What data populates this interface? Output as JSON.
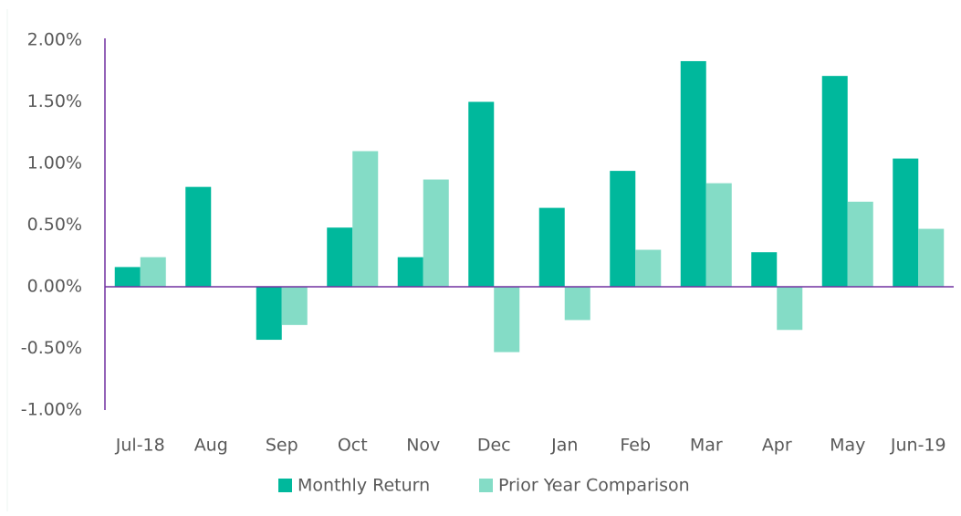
{
  "chart_data": {
    "type": "bar",
    "categories": [
      "Jul-18",
      "Aug",
      "Sep",
      "Oct",
      "Nov",
      "Dec",
      "Jan",
      "Feb",
      "Mar",
      "Apr",
      "May",
      "Jun-19"
    ],
    "series": [
      {
        "name": "Monthly Return",
        "color": "#00b89c",
        "values": [
          0.16,
          0.81,
          -0.43,
          0.48,
          0.24,
          1.5,
          0.64,
          0.94,
          1.83,
          0.28,
          1.71,
          1.04
        ]
      },
      {
        "name": "Prior Year Comparison",
        "color": "#84dcc6",
        "values": [
          0.24,
          null,
          -0.31,
          1.1,
          0.87,
          -0.53,
          -0.27,
          0.3,
          0.84,
          -0.35,
          0.69,
          0.47
        ]
      }
    ],
    "ylim": [
      -1,
      2
    ],
    "yticks": [
      {
        "value": -1,
        "label": "-1.00%"
      },
      {
        "value": -0.5,
        "label": "-0.50%"
      },
      {
        "value": 0,
        "label": "0.00%"
      },
      {
        "value": 0.5,
        "label": "0.50%"
      },
      {
        "value": 1,
        "label": "1.00%"
      },
      {
        "value": 1.5,
        "label": "1.50%"
      },
      {
        "value": 2,
        "label": "2.00%"
      }
    ],
    "axis_color": "#7030a0",
    "legend": "bottom"
  }
}
